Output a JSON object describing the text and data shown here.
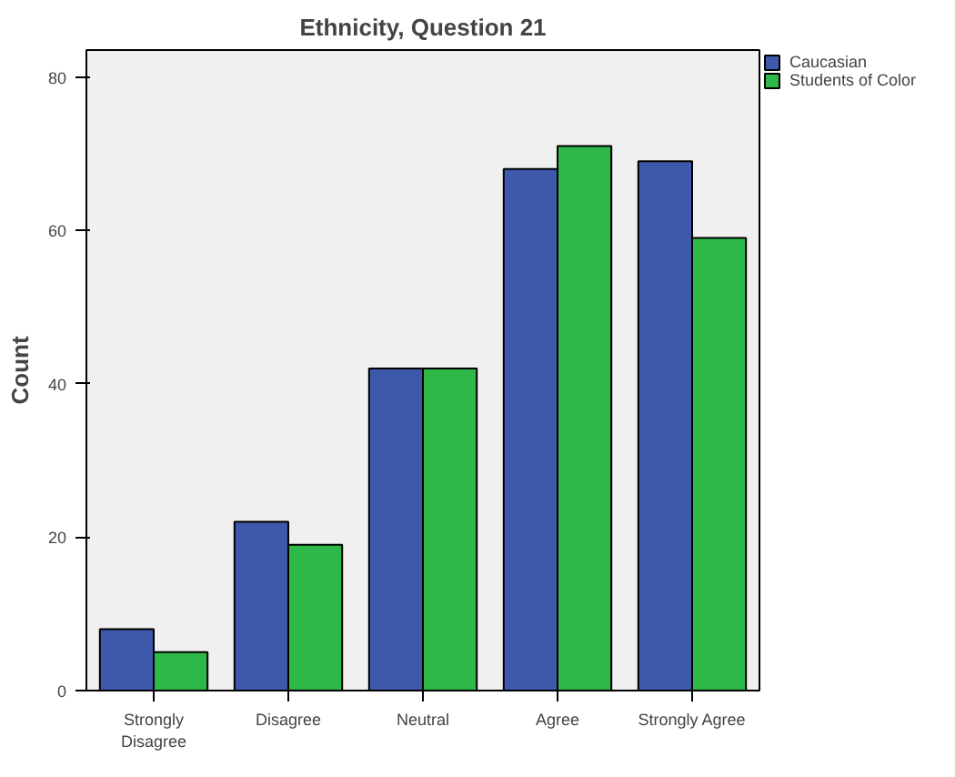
{
  "chart_data": {
    "type": "bar",
    "title": "Ethnicity, Question 21",
    "ylabel": "Count",
    "categories": [
      "Strongly Disagree",
      "Disagree",
      "Neutral",
      "Agree",
      "Strongly Agree"
    ],
    "series": [
      {
        "name": "Caucasian",
        "color": "#3e58ac",
        "values": [
          8,
          22,
          42,
          68,
          69
        ]
      },
      {
        "name": "Students of Color",
        "color": "#2eb848",
        "values": [
          5,
          19,
          42,
          71,
          59
        ]
      }
    ],
    "ylim": [
      0,
      83.5
    ],
    "yticks": [
      0,
      20,
      40,
      60,
      80
    ],
    "grid": false,
    "legend": "top right"
  }
}
